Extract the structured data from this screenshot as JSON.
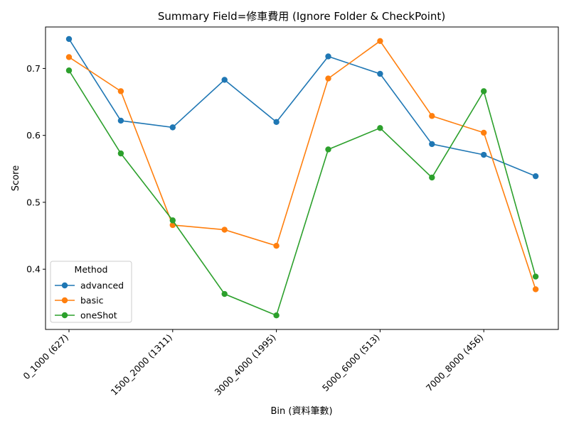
{
  "chart_data": {
    "type": "line",
    "title": "Summary Field=修車費用 (Ignore Folder & CheckPoint)",
    "xlabel": "Bin (資料筆數)",
    "ylabel": "Score",
    "x_tick_labels": [
      "0_1000 (627)",
      "1500_2000 (1311)",
      "3000_4000 (1995)",
      "5000_6000 (513)",
      "7000_8000 (456)"
    ],
    "x_tick_positions": [
      0,
      2,
      4,
      6,
      8
    ],
    "point_count": 10,
    "yticks": [
      "0.4",
      "0.5",
      "0.6",
      "0.7"
    ],
    "ylim": [
      0.31,
      0.762
    ],
    "grid": false,
    "legend": {
      "title": "Method",
      "placement": "lower-left"
    },
    "series": [
      {
        "name": "advanced",
        "color": "#1f77b4",
        "values": [
          0.744,
          0.622,
          0.612,
          0.683,
          0.62,
          0.718,
          0.692,
          0.587,
          0.571,
          0.539
        ]
      },
      {
        "name": "basic",
        "color": "#ff7f0e",
        "values": [
          0.717,
          0.666,
          0.466,
          0.459,
          0.435,
          0.685,
          0.741,
          0.629,
          0.604,
          0.37
        ]
      },
      {
        "name": "oneShot",
        "color": "#2ca02c",
        "values": [
          0.697,
          0.573,
          0.473,
          0.363,
          0.331,
          0.579,
          0.611,
          0.537,
          0.666,
          0.389
        ]
      }
    ]
  }
}
